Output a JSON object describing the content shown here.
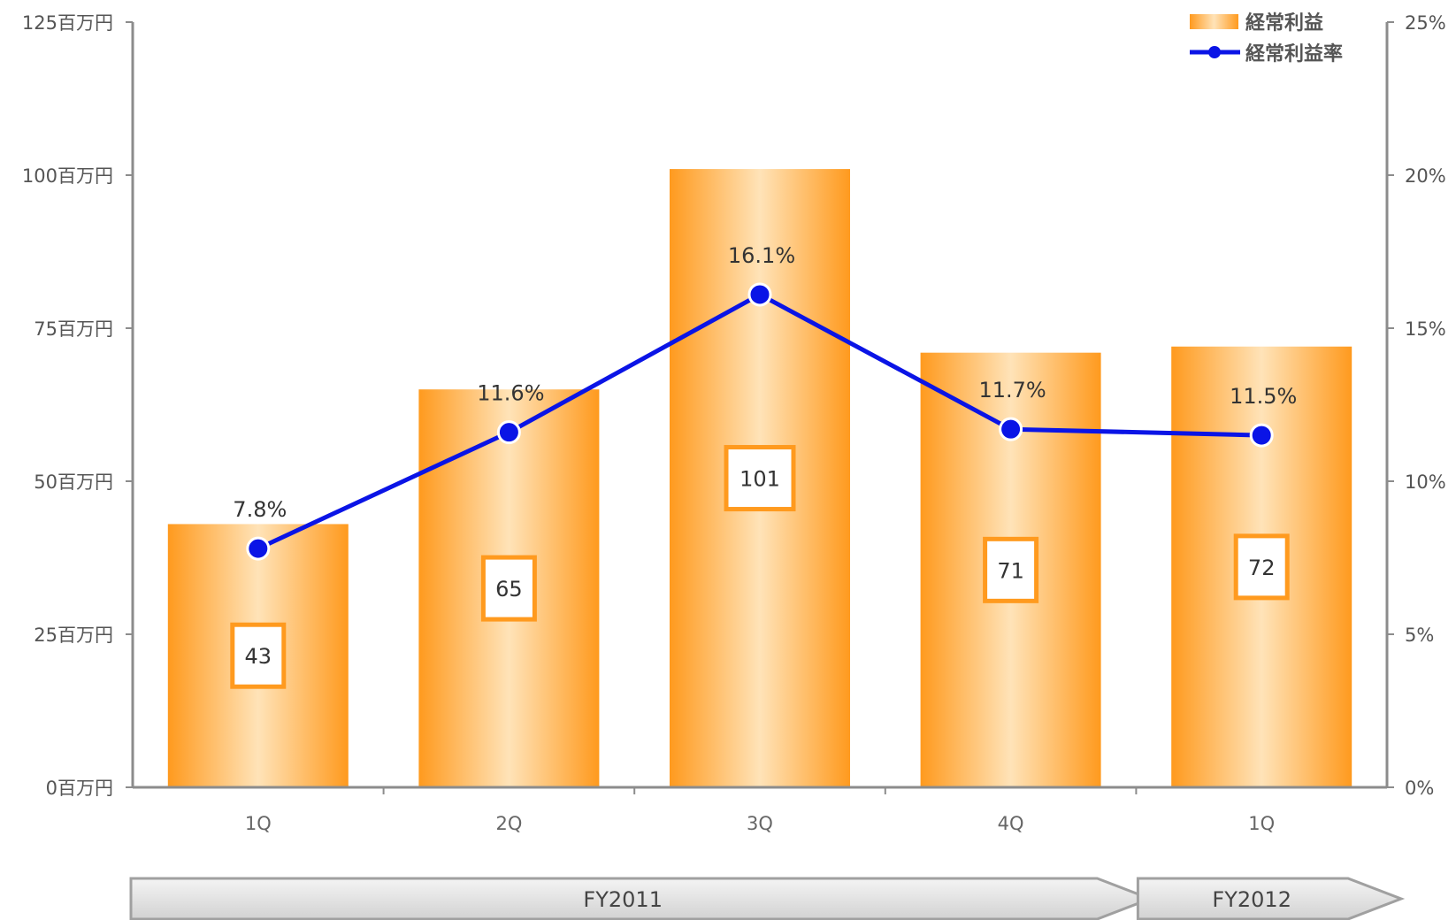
{
  "chart_data": {
    "type": "bar",
    "categories": [
      "1Q",
      "2Q",
      "3Q",
      "4Q",
      "1Q"
    ],
    "series": [
      {
        "name": "経常利益",
        "type": "bar",
        "axis": "left",
        "values": [
          43,
          65,
          101,
          71,
          72
        ],
        "labels": [
          "43",
          "65",
          "101",
          "71",
          "72"
        ],
        "color": "#FF9A1E"
      },
      {
        "name": "経常利益率",
        "type": "line",
        "axis": "right",
        "values": [
          7.8,
          11.6,
          16.1,
          11.7,
          11.5
        ],
        "labels": [
          "7.8%",
          "11.6%",
          "16.1%",
          "11.7%",
          "11.5%"
        ],
        "color": "#0A14E6"
      }
    ],
    "y_left": {
      "ylim": [
        0,
        125
      ],
      "ticks": [
        0,
        25,
        50,
        75,
        100,
        125
      ],
      "tick_labels": [
        "0百万円",
        "25百万円",
        "50百万円",
        "75百万円",
        "100百万円",
        "125百万円"
      ]
    },
    "y_right": {
      "ylim": [
        0,
        25
      ],
      "ticks": [
        0,
        5,
        10,
        15,
        20,
        25
      ],
      "tick_labels": [
        "0%",
        "5%",
        "10%",
        "15%",
        "20%",
        "25%"
      ]
    },
    "groups": [
      {
        "label": "FY2011",
        "categories": [
          "1Q",
          "2Q",
          "3Q",
          "4Q"
        ]
      },
      {
        "label": "FY2012",
        "categories": [
          "1Q"
        ]
      }
    ],
    "legend_position": "top-right",
    "grid": false
  },
  "colors": {
    "bar_edge": "#FF9A1E",
    "bar_center": "#FFE3B8",
    "line": "#0A14E6",
    "axis": "#8C8C8C",
    "label_box_border": "#FF9A1E",
    "arrow_fill": "#DCDCDC",
    "arrow_stroke": "#A0A0A0"
  }
}
